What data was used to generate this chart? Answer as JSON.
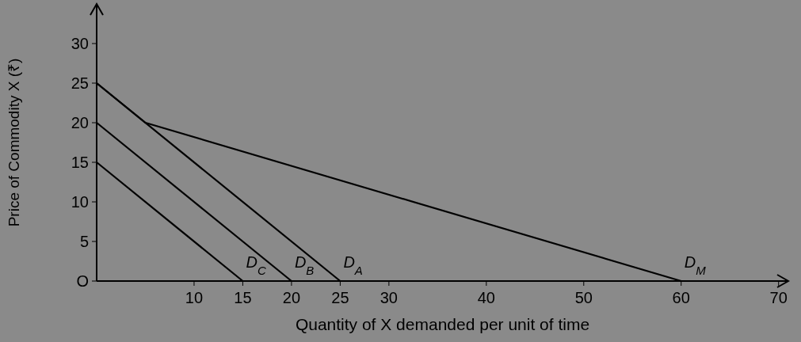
{
  "chart_data": {
    "type": "line",
    "xlabel": "Quantity of X demanded per unit of time",
    "ylabel": "Price of Commodity X (₹)",
    "xlim": [
      0,
      71
    ],
    "ylim": [
      0,
      35
    ],
    "xticks": [
      10,
      15,
      20,
      25,
      30,
      40,
      50,
      60,
      70
    ],
    "yticks": [
      {
        "value": 0,
        "label": "O"
      },
      5,
      10,
      15,
      20,
      25,
      30
    ],
    "series": [
      {
        "name": "D$_{C}$",
        "color": "#000000",
        "x": [
          0,
          15
        ],
        "values": [
          15,
          0
        ]
      },
      {
        "name": "D$_{B}$",
        "color": "#000000",
        "x": [
          0,
          20
        ],
        "values": [
          20,
          0
        ]
      },
      {
        "name": "D$_{A}$",
        "color": "#000000",
        "x": [
          0,
          25
        ],
        "values": [
          25,
          0
        ]
      },
      {
        "name": "D$_{M}$",
        "color": "#000000",
        "x": [
          0,
          5,
          60
        ],
        "values": [
          25,
          20,
          0
        ]
      }
    ],
    "grid": false,
    "marker": "none",
    "line_style": "solid"
  }
}
